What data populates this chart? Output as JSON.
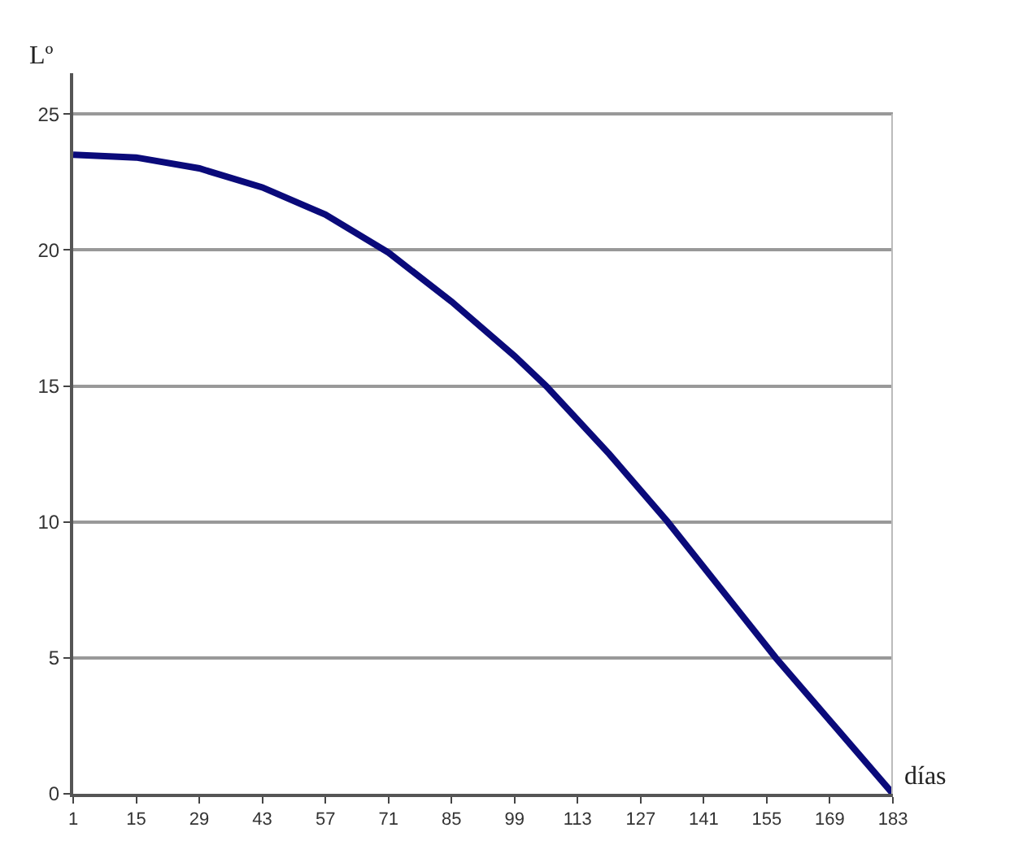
{
  "chart_data": {
    "type": "line",
    "xlabel": "días",
    "ylabel": "Lº",
    "x": [
      1,
      15,
      29,
      43,
      57,
      71,
      85,
      99,
      106,
      120,
      133,
      145,
      157,
      170,
      183
    ],
    "series": [
      {
        "color": "#0a0a7a",
        "values": [
          23.5,
          23.4,
          23.0,
          22.3,
          21.3,
          19.9,
          18.1,
          16.1,
          15.0,
          12.5,
          10.0,
          7.5,
          5.0,
          2.5,
          0.0
        ]
      }
    ],
    "xlim": [
      1,
      183
    ],
    "xticks": [
      1,
      15,
      29,
      43,
      57,
      71,
      85,
      99,
      113,
      127,
      141,
      155,
      169,
      183
    ],
    "ylim": [
      0,
      26.5
    ],
    "yticks": [
      0,
      5,
      10,
      15,
      20,
      25
    ],
    "grid": "y",
    "marker": "none",
    "line_style": "solid"
  }
}
